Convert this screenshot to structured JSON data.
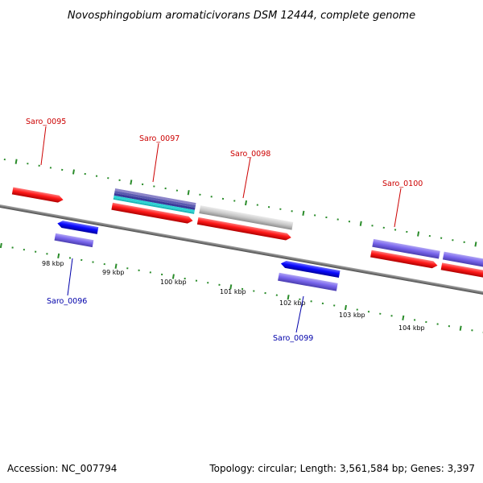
{
  "title": "Novosphingobium aromaticivorans DSM 12444, complete genome",
  "footer": {
    "accession": "Accession: NC_007794",
    "summary": "Topology: circular; Length: 3,561,584 bp; Genes: 3,397"
  },
  "colors": {
    "forward": "#ff0000",
    "reverse": "#0000ff",
    "other": "#7b68ee",
    "neutral": "#c8c8c8",
    "backbone": "#808080",
    "ticks": "#2a8c2a",
    "forward_label": "#cc0000",
    "reverse_label": "#0000aa"
  },
  "kbp_labels": [
    "98 kbp",
    "99 kbp",
    "100 kbp",
    "101 kbp",
    "102 kbp",
    "103 kbp",
    "104 kbp"
  ],
  "gene_labels": [
    "Saro_0095",
    "Saro_0096",
    "Saro_0097",
    "Saro_0098",
    "Saro_0099",
    "Saro_0100"
  ]
}
